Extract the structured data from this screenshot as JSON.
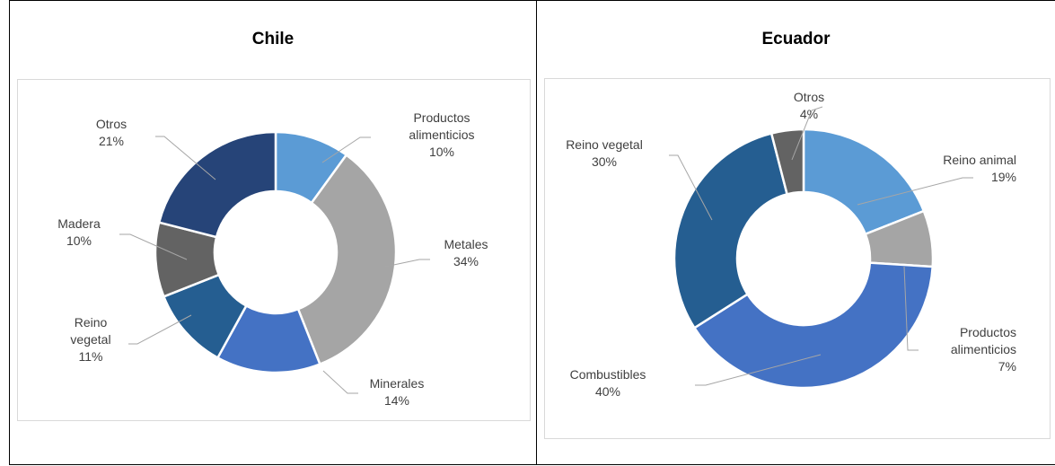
{
  "chart_data": [
    {
      "type": "pie",
      "title": "Chile",
      "categories": [
        "Productos alimenticios",
        "Metales",
        "Minerales",
        "Reino vegetal",
        "Madera",
        "Otros"
      ],
      "values": [
        10,
        34,
        14,
        11,
        10,
        21
      ],
      "data_labels": [
        [
          "Productos",
          "alimenticios",
          "10%"
        ],
        [
          "Metales",
          "34%"
        ],
        [
          "Minerales",
          "14%"
        ],
        [
          "Reino",
          "vegetal",
          "11%"
        ],
        [
          "Madera",
          "10%"
        ],
        [
          "Otros",
          "21%"
        ]
      ],
      "colors": [
        "#5b9bd5",
        "#a5a5a5",
        "#4472c4",
        "#255e91",
        "#636363",
        "#264478"
      ],
      "legend": "none"
    },
    {
      "type": "pie",
      "title": "Ecuador",
      "categories": [
        "Reino animal",
        "Productos alimenticios",
        "Combustibles",
        "Reino vegetal",
        "Otros"
      ],
      "values": [
        19,
        7,
        40,
        30,
        4
      ],
      "data_labels": [
        [
          "Reino animal",
          "19%"
        ],
        [
          "Productos",
          "alimenticios",
          "7%"
        ],
        [
          "Combustibles",
          "40%"
        ],
        [
          "Reino vegetal",
          "30%"
        ],
        [
          "Otros",
          "4%"
        ]
      ],
      "colors": [
        "#5b9bd5",
        "#a5a5a5",
        "#4472c4",
        "#255e91",
        "#636363"
      ],
      "legend": "none"
    }
  ]
}
